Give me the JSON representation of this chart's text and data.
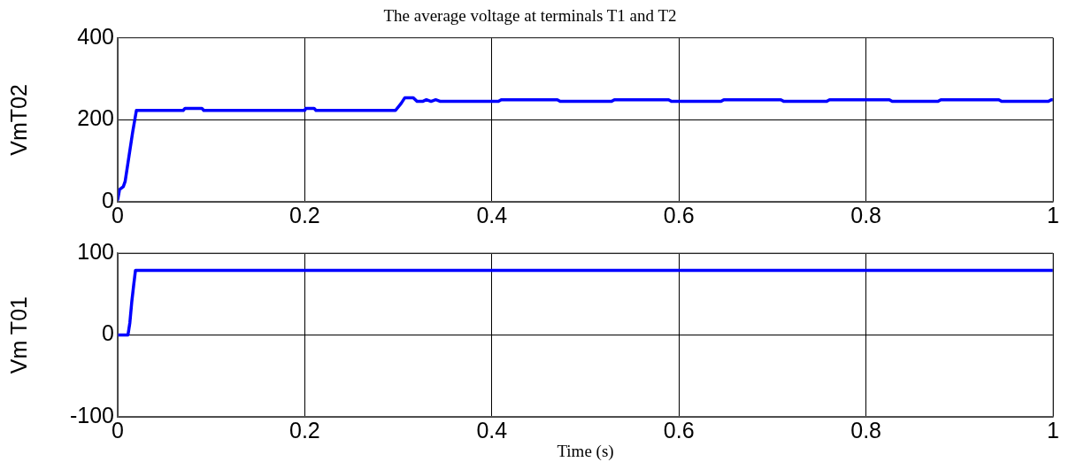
{
  "chart_data": [
    {
      "type": "line",
      "title": "The average voltage at terminals T1 and T2",
      "ylabel": "VmT02",
      "xlim": [
        0,
        1
      ],
      "xticks": [
        0,
        0.2,
        0.4,
        0.6,
        0.8,
        1
      ],
      "ylim": [
        0,
        400
      ],
      "yticks": [
        0,
        200,
        400
      ],
      "grid": true,
      "legend": false,
      "marker": "none",
      "line_style": "solid",
      "series": [
        {
          "color": "#0000ff",
          "x": [
            0,
            0.002,
            0.006,
            0.008,
            0.012,
            0.016,
            0.02,
            0.07,
            0.072,
            0.09,
            0.092,
            0.2,
            0.201,
            0.21,
            0.212,
            0.297,
            0.303,
            0.307,
            0.316,
            0.32,
            0.326,
            0.33,
            0.335,
            0.34,
            0.345,
            0.407,
            0.41,
            0.47,
            0.473,
            0.528,
            0.531,
            0.589,
            0.592,
            0.645,
            0.648,
            0.709,
            0.712,
            0.758,
            0.761,
            0.825,
            0.828,
            0.877,
            0.88,
            0.942,
            0.945,
            0.995,
            0.998,
            1
          ],
          "values": [
            5,
            30,
            37,
            50,
            110,
            170,
            223,
            223,
            228,
            228,
            223,
            223,
            228,
            228,
            223,
            223,
            240,
            254,
            254,
            245,
            245,
            249,
            245,
            249,
            245,
            245,
            249,
            249,
            245,
            245,
            249,
            249,
            245,
            245,
            249,
            249,
            245,
            245,
            249,
            249,
            245,
            245,
            249,
            249,
            245,
            245,
            249,
            249
          ]
        }
      ]
    },
    {
      "type": "line",
      "xlabel": "Time (s)",
      "ylabel": "Vm T01",
      "xlim": [
        0,
        1
      ],
      "xticks": [
        0,
        0.2,
        0.4,
        0.6,
        0.8,
        1
      ],
      "ylim": [
        -100,
        100
      ],
      "yticks": [
        -100,
        0,
        100
      ],
      "grid": true,
      "legend": false,
      "marker": "none",
      "line_style": "solid",
      "series": [
        {
          "color": "#0000ff",
          "x": [
            0,
            0.011,
            0.013,
            0.015,
            0.017,
            0.019,
            1
          ],
          "values": [
            0,
            0,
            15,
            40,
            60,
            79,
            79
          ]
        }
      ]
    }
  ]
}
